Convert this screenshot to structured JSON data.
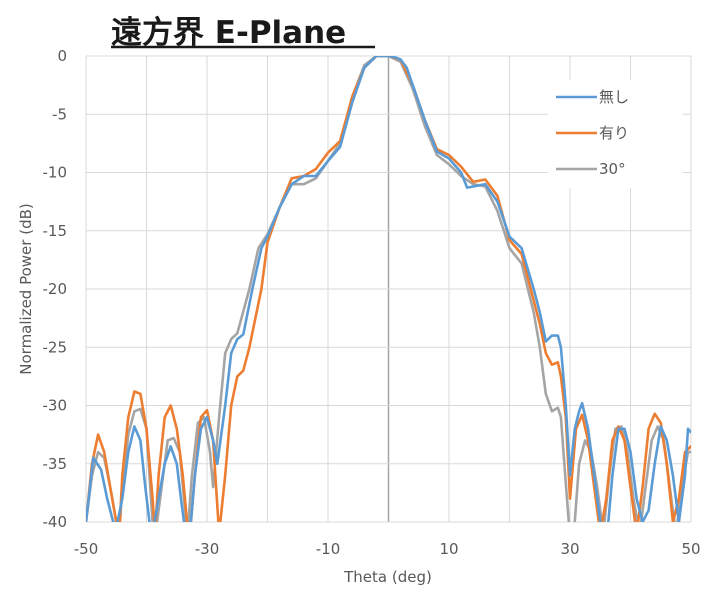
{
  "chart_data": {
    "type": "line",
    "title": "遠方界 E-Plane",
    "xlabel": "Theta (deg)",
    "ylabel": "Normalized Power (dB)",
    "xlim": [
      -50,
      50
    ],
    "ylim": [
      -40,
      0
    ],
    "x_ticks": [
      -50,
      -30,
      -10,
      10,
      30,
      50
    ],
    "y_ticks": [
      0,
      -5,
      -10,
      -15,
      -20,
      -25,
      -30,
      -35,
      -40
    ],
    "grid": true,
    "legend_position": "top-right",
    "series": [
      {
        "name": "無し",
        "color": "#5b9bd5",
        "points": [
          [
            -50,
            -40
          ],
          [
            -48.8,
            -34.5
          ],
          [
            -47.5,
            -35.5
          ],
          [
            -46.5,
            -38
          ],
          [
            -45.5,
            -40
          ],
          [
            -45,
            -40.5
          ],
          [
            -44,
            -38
          ],
          [
            -43,
            -34
          ],
          [
            -42,
            -31.8
          ],
          [
            -41,
            -33
          ],
          [
            -40.2,
            -37
          ],
          [
            -39.5,
            -40
          ],
          [
            -39,
            -41
          ],
          [
            -38,
            -38
          ],
          [
            -37,
            -35
          ],
          [
            -36,
            -33.5
          ],
          [
            -35,
            -35
          ],
          [
            -34.3,
            -38
          ],
          [
            -33.8,
            -40
          ],
          [
            -33,
            -42
          ],
          [
            -32,
            -36
          ],
          [
            -31,
            -32
          ],
          [
            -30,
            -31
          ],
          [
            -29,
            -33
          ],
          [
            -28.3,
            -35
          ],
          [
            -27,
            -30
          ],
          [
            -26,
            -25.5
          ],
          [
            -25,
            -24.3
          ],
          [
            -24,
            -23.9
          ],
          [
            -22.5,
            -20
          ],
          [
            -21,
            -16.5
          ],
          [
            -20,
            -15.5
          ],
          [
            -18,
            -13
          ],
          [
            -16,
            -11
          ],
          [
            -14,
            -10.3
          ],
          [
            -12,
            -10.3
          ],
          [
            -10,
            -9
          ],
          [
            -8,
            -7.8
          ],
          [
            -6,
            -4
          ],
          [
            -4,
            -1
          ],
          [
            -2,
            0
          ],
          [
            0,
            0
          ],
          [
            1,
            -0.1
          ],
          [
            2,
            -0.3
          ],
          [
            3,
            -1
          ],
          [
            4,
            -2.5
          ],
          [
            6,
            -5.5
          ],
          [
            8,
            -8.2
          ],
          [
            10,
            -8.8
          ],
          [
            12,
            -10
          ],
          [
            13,
            -11.3
          ],
          [
            14,
            -11.2
          ],
          [
            16,
            -11
          ],
          [
            18,
            -12.5
          ],
          [
            20,
            -15.5
          ],
          [
            22,
            -16.5
          ],
          [
            24,
            -20
          ],
          [
            25,
            -22
          ],
          [
            26,
            -24.5
          ],
          [
            27,
            -24
          ],
          [
            28,
            -24
          ],
          [
            28.5,
            -25
          ],
          [
            29.3,
            -30
          ],
          [
            30,
            -36
          ],
          [
            30.8,
            -32
          ],
          [
            31.5,
            -30.5
          ],
          [
            32,
            -29.8
          ],
          [
            33,
            -32
          ],
          [
            34,
            -36
          ],
          [
            35,
            -40
          ],
          [
            36,
            -42
          ],
          [
            37,
            -36
          ],
          [
            38,
            -32
          ],
          [
            39,
            -32
          ],
          [
            40,
            -34
          ],
          [
            41,
            -38
          ],
          [
            42,
            -40
          ],
          [
            43,
            -39
          ],
          [
            44,
            -35
          ],
          [
            45,
            -31.8
          ],
          [
            46,
            -33
          ],
          [
            47,
            -36
          ],
          [
            48,
            -40
          ],
          [
            49,
            -36
          ],
          [
            49.5,
            -32
          ],
          [
            50,
            -32.3
          ]
        ]
      },
      {
        "name": "有り",
        "color": "#ed7d31",
        "points": [
          [
            -50,
            -40
          ],
          [
            -49,
            -35
          ],
          [
            -48,
            -32.5
          ],
          [
            -47,
            -34
          ],
          [
            -46,
            -37
          ],
          [
            -45,
            -40
          ],
          [
            -44.5,
            -41
          ],
          [
            -44,
            -36
          ],
          [
            -43,
            -31
          ],
          [
            -42,
            -28.8
          ],
          [
            -41,
            -29
          ],
          [
            -40,
            -32
          ],
          [
            -39,
            -38
          ],
          [
            -38.6,
            -41
          ],
          [
            -38,
            -36
          ],
          [
            -37,
            -31
          ],
          [
            -36,
            -30
          ],
          [
            -35,
            -32
          ],
          [
            -34,
            -36
          ],
          [
            -33.3,
            -40
          ],
          [
            -33,
            -42
          ],
          [
            -32,
            -36
          ],
          [
            -31,
            -31
          ],
          [
            -30,
            -30.4
          ],
          [
            -29,
            -33
          ],
          [
            -28,
            -41
          ],
          [
            -27,
            -36
          ],
          [
            -26,
            -30
          ],
          [
            -25,
            -27.5
          ],
          [
            -24,
            -27
          ],
          [
            -23,
            -25
          ],
          [
            -21,
            -20
          ],
          [
            -20,
            -16
          ],
          [
            -18,
            -13
          ],
          [
            -16,
            -10.5
          ],
          [
            -14,
            -10.3
          ],
          [
            -12,
            -9.7
          ],
          [
            -10,
            -8.3
          ],
          [
            -8,
            -7.3
          ],
          [
            -6,
            -3.5
          ],
          [
            -4,
            -1
          ],
          [
            -2,
            0
          ],
          [
            0,
            0
          ],
          [
            2,
            -0.3
          ],
          [
            4,
            -2.5
          ],
          [
            6,
            -5.5
          ],
          [
            8,
            -8
          ],
          [
            10,
            -8.5
          ],
          [
            12,
            -9.5
          ],
          [
            14,
            -10.8
          ],
          [
            16,
            -10.6
          ],
          [
            18,
            -12
          ],
          [
            20,
            -15.8
          ],
          [
            22,
            -17
          ],
          [
            24,
            -21
          ],
          [
            25,
            -23
          ],
          [
            26,
            -25.5
          ],
          [
            27,
            -26.5
          ],
          [
            28,
            -26.3
          ],
          [
            28.5,
            -27.5
          ],
          [
            29.3,
            -31
          ],
          [
            30,
            -38
          ],
          [
            31,
            -32
          ],
          [
            32,
            -30.8
          ],
          [
            33,
            -33
          ],
          [
            34,
            -37
          ],
          [
            35,
            -41
          ],
          [
            36,
            -38
          ],
          [
            37,
            -33
          ],
          [
            38,
            -31.8
          ],
          [
            39,
            -33
          ],
          [
            40,
            -37
          ],
          [
            41,
            -41
          ],
          [
            42,
            -37
          ],
          [
            43,
            -32
          ],
          [
            44,
            -30.7
          ],
          [
            45,
            -31.5
          ],
          [
            46,
            -35
          ],
          [
            47,
            -40
          ],
          [
            48,
            -38
          ],
          [
            49,
            -34
          ],
          [
            50,
            -33.5
          ]
        ]
      },
      {
        "name": "30°",
        "color": "#a5a5a5",
        "points": [
          [
            -50,
            -40
          ],
          [
            -49,
            -36
          ],
          [
            -48,
            -34
          ],
          [
            -47,
            -34.5
          ],
          [
            -46,
            -37
          ],
          [
            -45,
            -40
          ],
          [
            -44.5,
            -41
          ],
          [
            -44,
            -37
          ],
          [
            -43,
            -32.5
          ],
          [
            -42,
            -30.5
          ],
          [
            -41,
            -30.3
          ],
          [
            -40,
            -32
          ],
          [
            -39.5,
            -36
          ],
          [
            -39,
            -40
          ],
          [
            -38.5,
            -41
          ],
          [
            -37.5,
            -37
          ],
          [
            -36.5,
            -33
          ],
          [
            -35.5,
            -32.8
          ],
          [
            -34.5,
            -34
          ],
          [
            -33.8,
            -38
          ],
          [
            -33.2,
            -41
          ],
          [
            -32.5,
            -36
          ],
          [
            -31.5,
            -31.5
          ],
          [
            -30.5,
            -31
          ],
          [
            -29.5,
            -34
          ],
          [
            -29,
            -37
          ],
          [
            -28,
            -31
          ],
          [
            -27,
            -25.5
          ],
          [
            -26,
            -24.3
          ],
          [
            -25,
            -23.8
          ],
          [
            -23,
            -20
          ],
          [
            -21.5,
            -16.5
          ],
          [
            -20,
            -15.3
          ],
          [
            -18,
            -13
          ],
          [
            -16,
            -11
          ],
          [
            -14,
            -11
          ],
          [
            -12,
            -10.5
          ],
          [
            -10,
            -9
          ],
          [
            -8,
            -7.5
          ],
          [
            -6,
            -3.5
          ],
          [
            -4,
            -0.8
          ],
          [
            -2,
            0
          ],
          [
            0,
            0
          ],
          [
            2,
            -0.5
          ],
          [
            4,
            -2.8
          ],
          [
            6,
            -6
          ],
          [
            8,
            -8.5
          ],
          [
            10,
            -9.3
          ],
          [
            12,
            -10.3
          ],
          [
            14,
            -11
          ],
          [
            16,
            -11.2
          ],
          [
            18,
            -13.3
          ],
          [
            20,
            -16.5
          ],
          [
            22,
            -17.8
          ],
          [
            24,
            -22
          ],
          [
            25,
            -25
          ],
          [
            26,
            -29
          ],
          [
            27,
            -30.5
          ],
          [
            28,
            -30.2
          ],
          [
            28.5,
            -31
          ],
          [
            29.2,
            -36
          ],
          [
            29.8,
            -40
          ],
          [
            30.5,
            -42
          ],
          [
            31.5,
            -35
          ],
          [
            32.5,
            -33
          ],
          [
            33.5,
            -34
          ],
          [
            34.5,
            -37
          ],
          [
            35.5,
            -41
          ],
          [
            36.5,
            -36
          ],
          [
            37.5,
            -32
          ],
          [
            38.5,
            -31.8
          ],
          [
            39.5,
            -34
          ],
          [
            40.5,
            -38
          ],
          [
            41.5,
            -41
          ],
          [
            42.5,
            -37
          ],
          [
            43.5,
            -33
          ],
          [
            44.5,
            -31.8
          ],
          [
            45.5,
            -33
          ],
          [
            46.5,
            -37
          ],
          [
            47.5,
            -41
          ],
          [
            48.5,
            -37
          ],
          [
            49.5,
            -34
          ],
          [
            50,
            -34
          ]
        ]
      }
    ]
  }
}
